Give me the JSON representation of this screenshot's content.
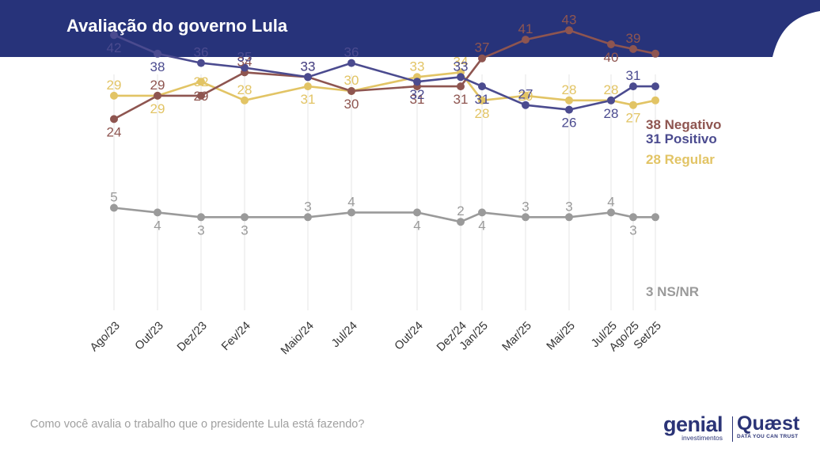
{
  "header": {
    "title": "Avaliação do governo Lula"
  },
  "footer": {
    "question": "Como você avalia o trabalho que o presidente Lula está fazendo?",
    "logo_genial": "genial",
    "logo_genial_sub": "investimentos",
    "logo_quaest": "Quæst",
    "logo_quaest_tag": "DATA YOU CAN TRUST"
  },
  "colors": {
    "header_bg": "#27337a",
    "negativo": "#8e5550",
    "positivo": "#4b4b8f",
    "regular": "#e2c465",
    "nsnr": "#9a9a9a",
    "grid": "#e6e6e6"
  },
  "chart_data": {
    "type": "line",
    "title": "Avaliação do governo Lula",
    "xlabel": "",
    "ylabel": "",
    "grid": "vertical",
    "categories": [
      "Ago/23",
      "Out/23",
      "Dez/23",
      "Fev/24",
      "Maio/24",
      "Jul/24",
      "Out/24",
      "Dez/24",
      "Jan/25",
      "Mar/25",
      "Mai/25",
      "Jul/25",
      "Ago/25",
      "Set/25"
    ],
    "series": [
      {
        "name": "Positivo",
        "end_label": "31 Positivo",
        "color": "#4b4b8f",
        "values": [
          42,
          38,
          36,
          35,
          33,
          36,
          32,
          33,
          31,
          27,
          26,
          28,
          31,
          31
        ]
      },
      {
        "name": "Negativo",
        "end_label": "38 Negativo",
        "color": "#8e5550",
        "values": [
          24,
          29,
          29,
          34,
          33,
          30,
          31,
          31,
          37,
          41,
          43,
          40,
          39,
          38
        ]
      },
      {
        "name": "Regular",
        "end_label": "28 Regular",
        "color": "#e2c465",
        "values": [
          29,
          29,
          32,
          28,
          31,
          30,
          33,
          34,
          28,
          29,
          28,
          28,
          27,
          28
        ]
      },
      {
        "name": "NS/NR",
        "end_label": "3 NS/NR",
        "color": "#9a9a9a",
        "values": [
          5,
          4,
          3,
          3,
          3,
          4,
          4,
          2,
          4,
          3,
          3,
          4,
          3,
          3
        ]
      }
    ]
  }
}
